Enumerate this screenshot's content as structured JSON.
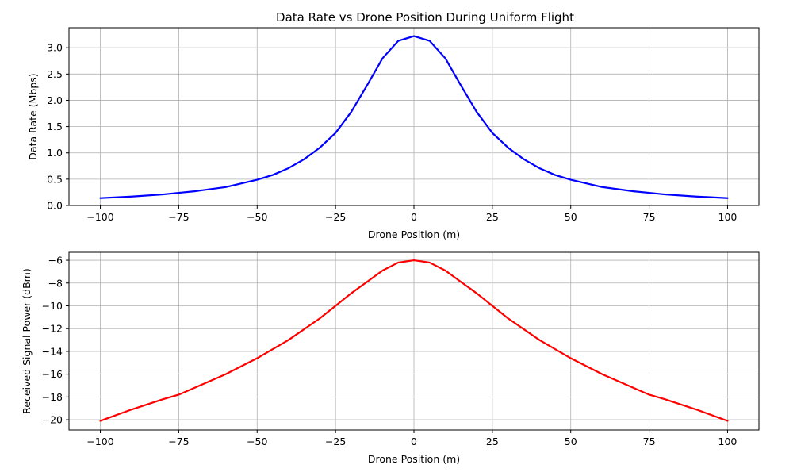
{
  "figure": {
    "title": "Data Rate vs Drone Position During Uniform Flight"
  },
  "chart_data": [
    {
      "type": "line",
      "title": "Data Rate vs Drone Position During Uniform Flight",
      "xlabel": "Drone Position (m)",
      "ylabel": "Data Rate (Mbps)",
      "xlim": [
        -110,
        110
      ],
      "ylim": [
        0.0,
        3.38
      ],
      "xticks": [
        -100,
        -75,
        -50,
        -25,
        0,
        25,
        50,
        75,
        100
      ],
      "xtick_labels": [
        "−100",
        "−75",
        "−50",
        "−25",
        "0",
        "25",
        "50",
        "75",
        "100"
      ],
      "yticks": [
        0.0,
        0.5,
        1.0,
        1.5,
        2.0,
        2.5,
        3.0
      ],
      "ytick_labels": [
        "0.0",
        "0.5",
        "1.0",
        "1.5",
        "2.0",
        "2.5",
        "3.0"
      ],
      "grid": true,
      "color": "#0000ff",
      "series": [
        {
          "x": [
            -100,
            -90,
            -80,
            -75,
            -70,
            -60,
            -50,
            -45,
            -40,
            -35,
            -30,
            -25,
            -20,
            -15,
            -10,
            -5,
            0,
            5,
            10,
            15,
            20,
            25,
            30,
            35,
            40,
            45,
            50,
            60,
            70,
            75,
            80,
            90,
            100
          ],
          "y": [
            0.14,
            0.17,
            0.21,
            0.24,
            0.27,
            0.35,
            0.49,
            0.58,
            0.71,
            0.88,
            1.1,
            1.38,
            1.78,
            2.28,
            2.8,
            3.13,
            3.22,
            3.13,
            2.8,
            2.28,
            1.78,
            1.38,
            1.1,
            0.88,
            0.71,
            0.58,
            0.49,
            0.35,
            0.27,
            0.24,
            0.21,
            0.17,
            0.14
          ]
        }
      ]
    },
    {
      "type": "line",
      "title": "",
      "xlabel": "Drone Position (m)",
      "ylabel": "Received Signal Power (dBm)",
      "xlim": [
        -110,
        110
      ],
      "ylim": [
        -20.9,
        -5.3
      ],
      "xticks": [
        -100,
        -75,
        -50,
        -25,
        0,
        25,
        50,
        75,
        100
      ],
      "xtick_labels": [
        "−100",
        "−75",
        "−50",
        "−25",
        "0",
        "25",
        "50",
        "75",
        "100"
      ],
      "yticks": [
        -20,
        -18,
        -16,
        -14,
        -12,
        -10,
        -8,
        -6
      ],
      "ytick_labels": [
        "−20",
        "−18",
        "−16",
        "−14",
        "−12",
        "−10",
        "−8",
        "−6"
      ],
      "grid": true,
      "color": "#ff0000",
      "series": [
        {
          "x": [
            -100,
            -90,
            -80,
            -75,
            -70,
            -60,
            -50,
            -40,
            -30,
            -25,
            -20,
            -15,
            -10,
            -5,
            0,
            5,
            10,
            15,
            20,
            25,
            30,
            40,
            50,
            60,
            70,
            75,
            80,
            90,
            100
          ],
          "y": [
            -20.1,
            -19.1,
            -18.2,
            -17.8,
            -17.2,
            -16.0,
            -14.6,
            -13.0,
            -11.1,
            -10.0,
            -8.9,
            -7.9,
            -6.9,
            -6.2,
            -6.0,
            -6.2,
            -6.9,
            -7.9,
            -8.9,
            -10.0,
            -11.1,
            -13.0,
            -14.6,
            -16.0,
            -17.2,
            -17.8,
            -18.2,
            -19.1,
            -20.1
          ]
        }
      ]
    }
  ]
}
